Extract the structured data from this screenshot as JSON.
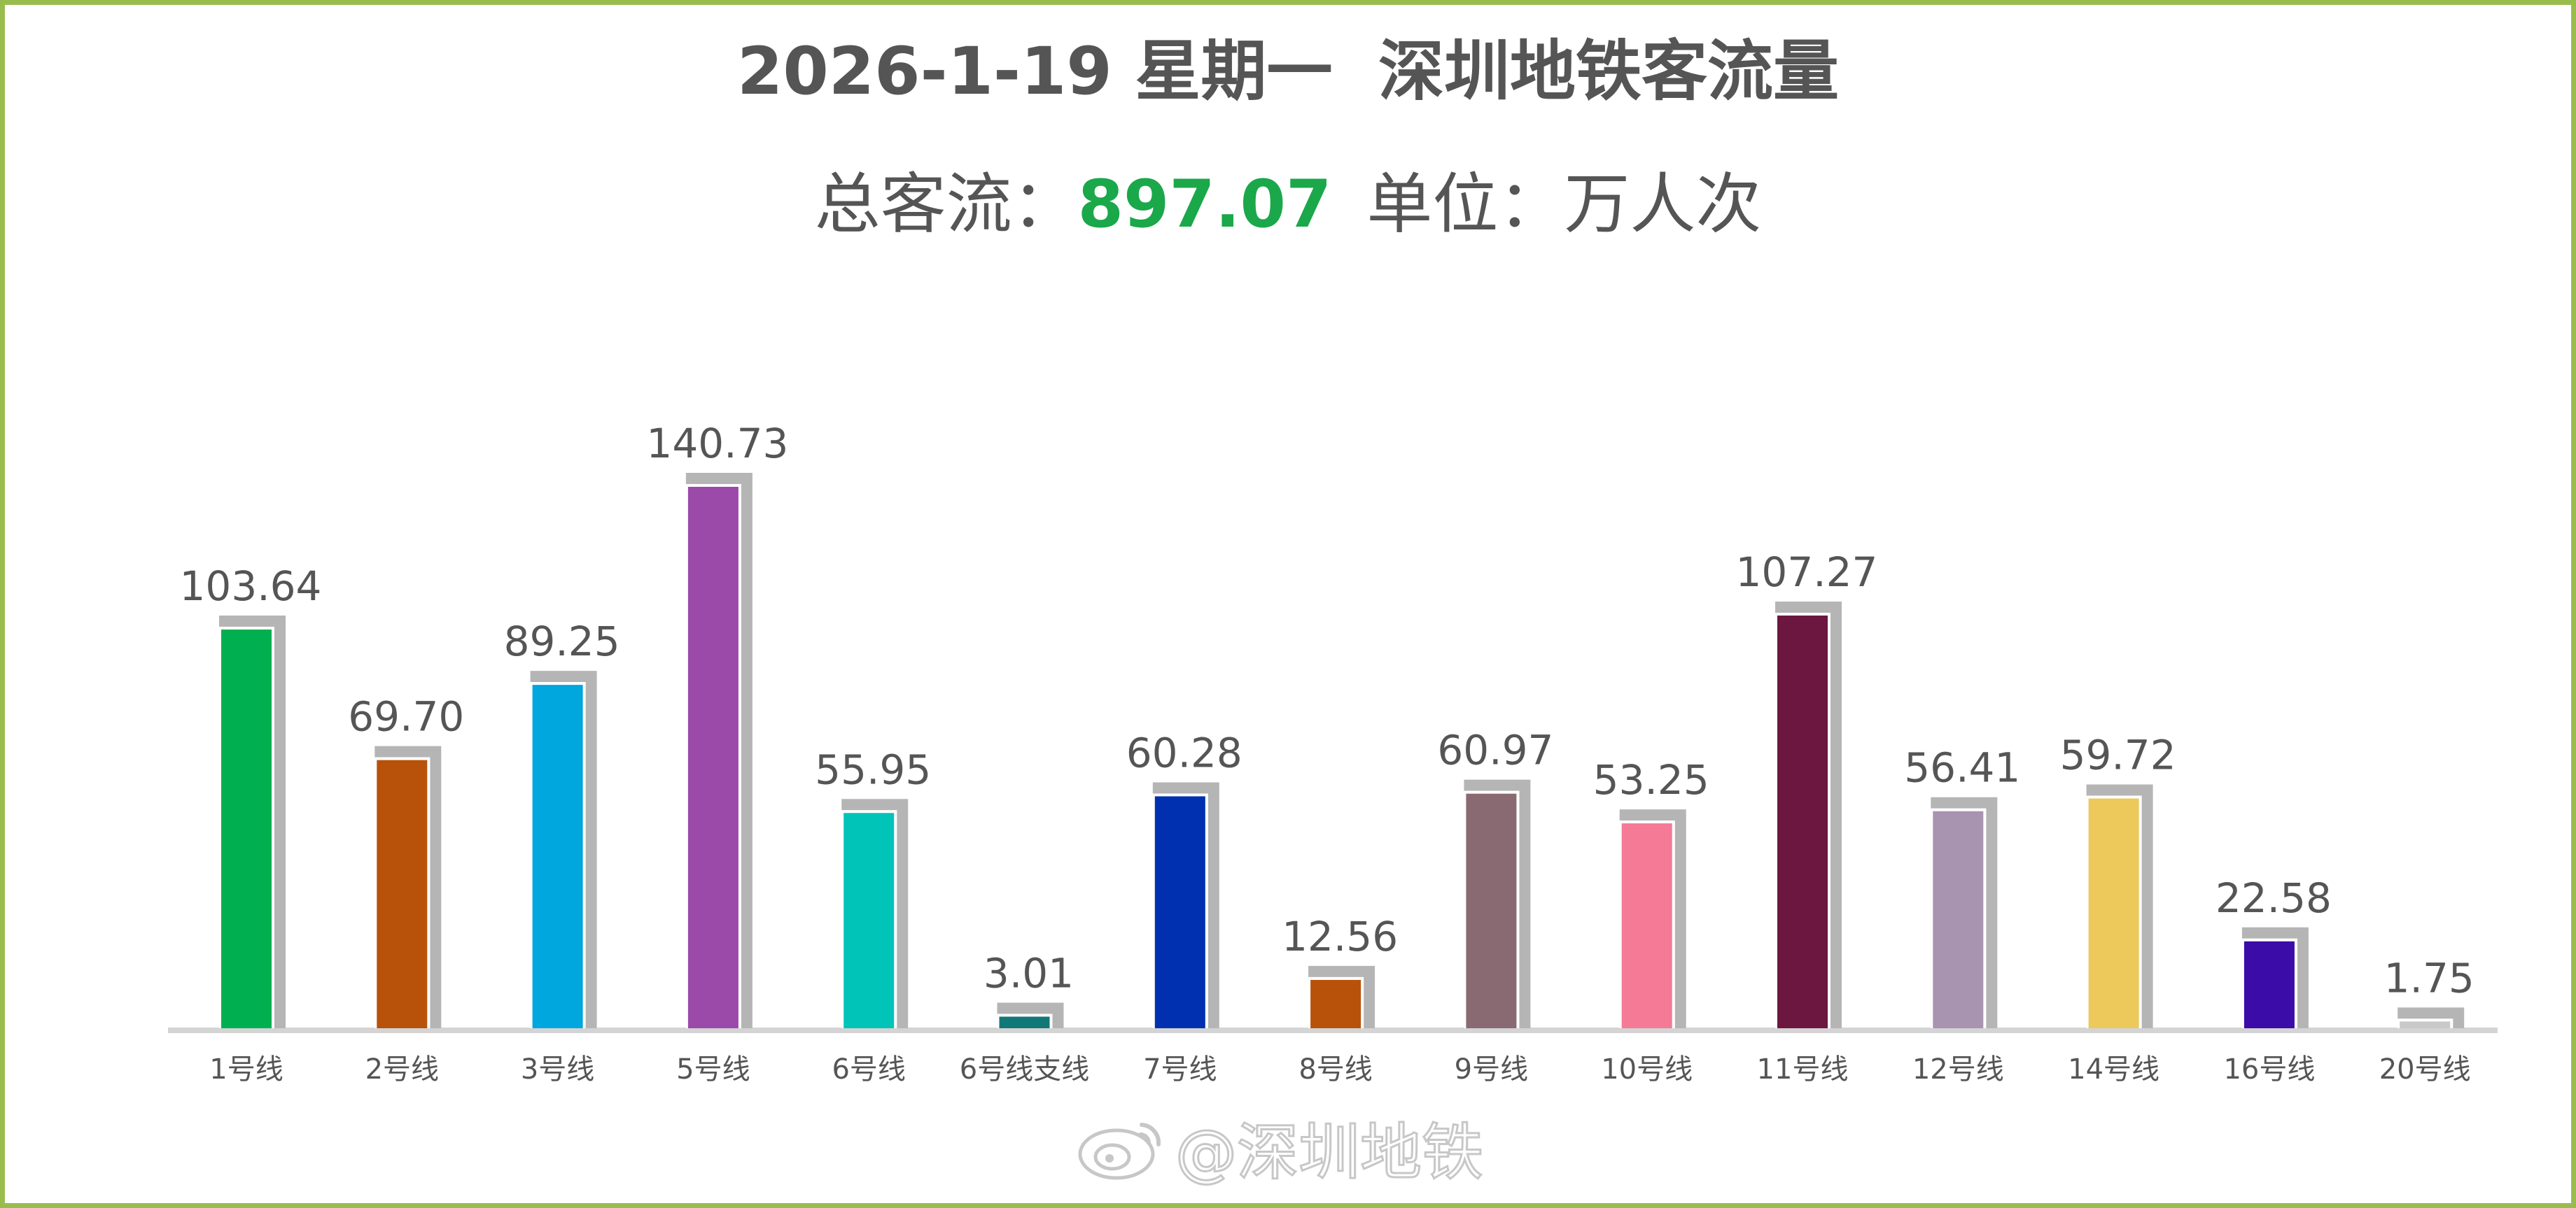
{
  "header": {
    "title": "2026-1-19 星期一  深圳地铁客流量",
    "total_label": "总客流：",
    "total_value": "897.07",
    "unit_label": "单位：万人次"
  },
  "watermark": {
    "icon": "weibo-icon",
    "text": "@深圳地铁"
  },
  "colors": {
    "frame": "#98bd4d",
    "bar_shadow": "#b5b5b5",
    "axis": "#d4d4d4",
    "label": "#555555",
    "total_value": "#1aa84a"
  },
  "chart_data": {
    "type": "bar",
    "title": "2026-1-19 星期一  深圳地铁客流量",
    "xlabel": "",
    "ylabel": "",
    "grid": false,
    "legend": "none",
    "ylim": [
      0,
      150
    ],
    "categories": [
      "1号线",
      "2号线",
      "3号线",
      "5号线",
      "6号线",
      "6号线支线",
      "7号线",
      "8号线",
      "9号线",
      "10号线",
      "11号线",
      "12号线",
      "14号线",
      "16号线",
      "20号线"
    ],
    "values": [
      103.64,
      69.7,
      89.25,
      140.73,
      55.95,
      3.01,
      60.28,
      12.56,
      60.97,
      53.25,
      107.27,
      56.41,
      59.72,
      22.58,
      1.75
    ],
    "value_labels": [
      "103.64",
      "69.70",
      "89.25",
      "140.73",
      "55.95",
      "3.01",
      "60.28",
      "12.56",
      "60.97",
      "53.25",
      "107.27",
      "56.41",
      "59.72",
      "22.58",
      "1.75"
    ],
    "colors": [
      "#00b050",
      "#b8520a",
      "#00a6de",
      "#9b4aaa",
      "#00c4b8",
      "#117878",
      "#0030b0",
      "#b8520a",
      "#8a6a72",
      "#f47a96",
      "#6b173f",
      "#a893b0",
      "#ecc95a",
      "#3b0ca8",
      "#c9c9c9"
    ]
  }
}
